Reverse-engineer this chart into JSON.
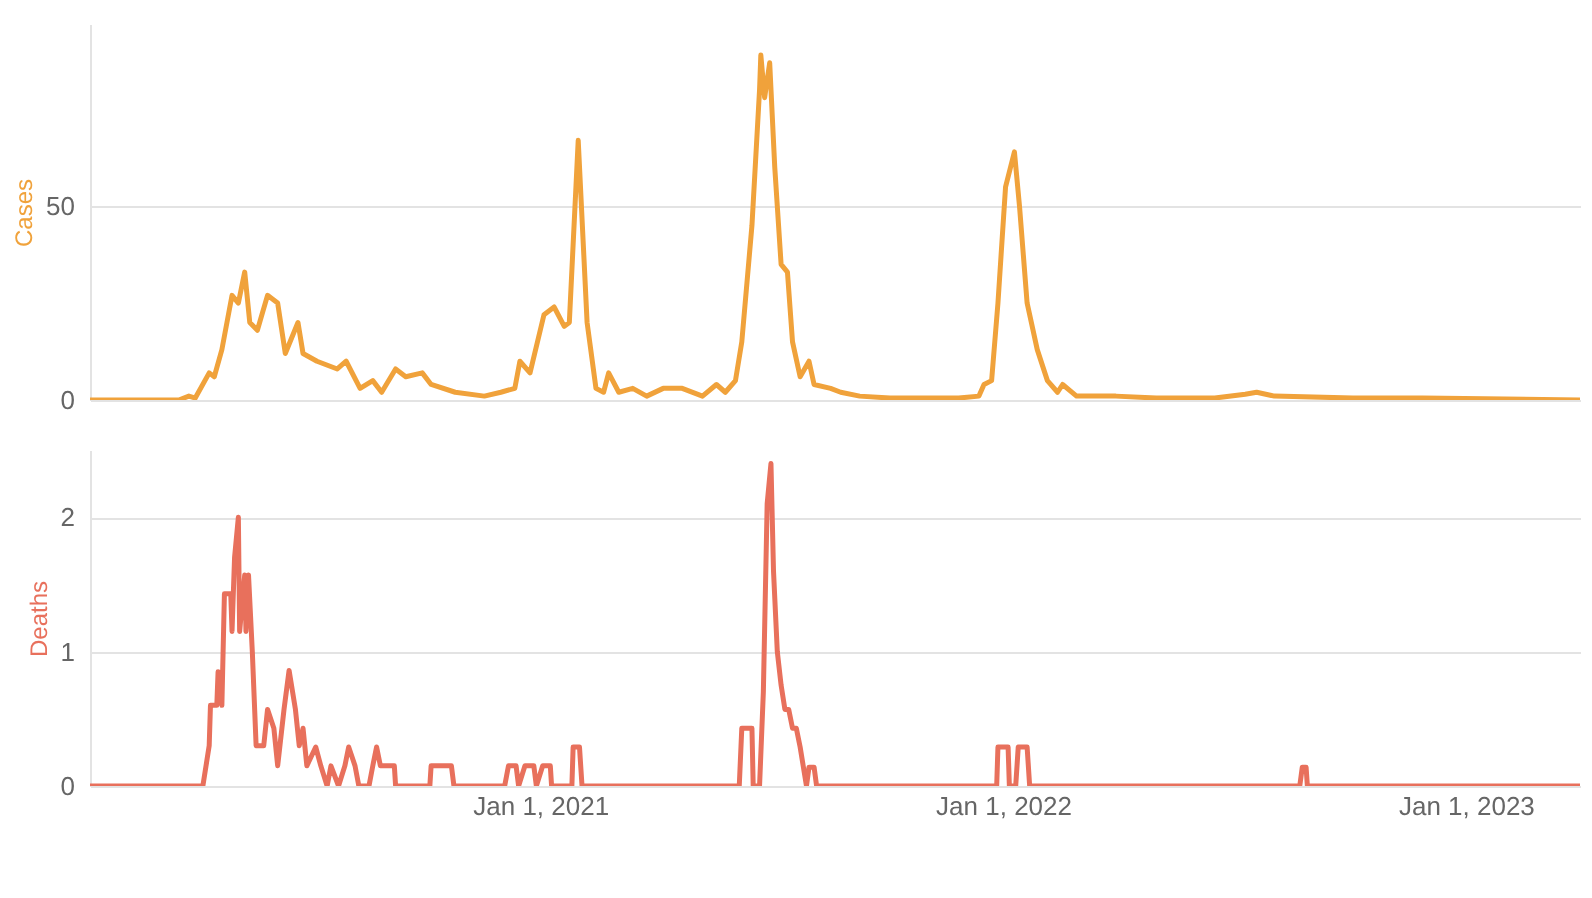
{
  "chart_data": [
    {
      "type": "line",
      "ylabel": "Cases",
      "xlim": [
        "2020-01-12",
        "2023-04-01"
      ],
      "ylim": [
        0,
        97
      ],
      "yticks": [
        0,
        50
      ],
      "grid": "y",
      "tick_labels": "y",
      "series": [
        {
          "color": "#f0a23b",
          "x": [
            "2020-01-12",
            "2020-03-22",
            "2020-03-30",
            "2020-04-04",
            "2020-04-15",
            "2020-04-19",
            "2020-04-25",
            "2020-05-03",
            "2020-05-08",
            "2020-05-13",
            "2020-05-17",
            "2020-05-23",
            "2020-05-31",
            "2020-06-08",
            "2020-06-14",
            "2020-06-24",
            "2020-06-28",
            "2020-07-09",
            "2020-07-25",
            "2020-08-01",
            "2020-08-12",
            "2020-08-22",
            "2020-08-29",
            "2020-09-09",
            "2020-09-17",
            "2020-09-30",
            "2020-10-07",
            "2020-10-26",
            "2020-11-18",
            "2020-12-01",
            "2020-12-12",
            "2020-12-16",
            "2020-12-24",
            "2021-01-04",
            "2021-01-12",
            "2021-01-20",
            "2021-01-24",
            "2021-01-31",
            "2021-02-07",
            "2021-02-14",
            "2021-02-20",
            "2021-02-24",
            "2021-03-04",
            "2021-03-15",
            "2021-03-26",
            "2021-04-08",
            "2021-04-23",
            "2021-05-09",
            "2021-05-20",
            "2021-05-27",
            "2021-06-04",
            "2021-06-09",
            "2021-06-17",
            "2021-06-23",
            "2021-06-24",
            "2021-06-27",
            "2021-07-01",
            "2021-07-05",
            "2021-07-10",
            "2021-07-15",
            "2021-07-19",
            "2021-07-25",
            "2021-08-01",
            "2021-08-05",
            "2021-08-18",
            "2021-08-26",
            "2021-09-10",
            "2021-10-04",
            "2021-11-27",
            "2021-12-13",
            "2021-12-17",
            "2021-12-23",
            "2021-12-28",
            "2022-01-03",
            "2022-01-10",
            "2022-01-14",
            "2022-01-20",
            "2022-01-28",
            "2022-02-05",
            "2022-02-13",
            "2022-02-17",
            "2022-02-28",
            "2022-03-31",
            "2022-05-02",
            "2022-06-17",
            "2022-07-11",
            "2022-07-20",
            "2022-08-03",
            "2022-10-04",
            "2022-11-28",
            "2023-04-01"
          ],
          "values": [
            0,
            0,
            1,
            0.5,
            7,
            6,
            13,
            27,
            25,
            33,
            20,
            18,
            27,
            25,
            12,
            20,
            12,
            10,
            8,
            10,
            3,
            5,
            2,
            8,
            6,
            7,
            4,
            2,
            1,
            2,
            3,
            10,
            7,
            22,
            24,
            19,
            20,
            67,
            20,
            3,
            2,
            7,
            2,
            3,
            1,
            3,
            3,
            1,
            4,
            2,
            5,
            15,
            45,
            80,
            89,
            78,
            87,
            60,
            35,
            33,
            15,
            6,
            10,
            4,
            3,
            2,
            1,
            0.5,
            0.5,
            1,
            4,
            5,
            25,
            55,
            64,
            50,
            25,
            13,
            5,
            2,
            4,
            1,
            1,
            0.5,
            0.5,
            1.5,
            2,
            1,
            0.5,
            0.5,
            0
          ]
        }
      ]
    },
    {
      "type": "line",
      "ylabel": "Deaths",
      "xlim": [
        "2020-01-12",
        "2023-04-01"
      ],
      "xticks": [
        {
          "value": "2021-01-01",
          "label": "Jan 1, 2021"
        },
        {
          "value": "2022-01-01",
          "label": "Jan 1, 2022"
        },
        {
          "value": "2023-01-01",
          "label": "Jan 1, 2023"
        }
      ],
      "ylim": [
        0,
        2.5
      ],
      "yticks": [
        0,
        1,
        2
      ],
      "grid": "y",
      "series": [
        {
          "color": "#e8705c",
          "x": [
            "2020-01-12",
            "2020-04-10",
            "2020-04-15",
            "2020-04-16",
            "2020-04-21",
            "2020-04-22",
            "2020-04-25",
            "2020-04-27",
            "2020-05-02",
            "2020-05-03",
            "2020-05-05",
            "2020-05-08",
            "2020-05-09",
            "2020-05-13",
            "2020-05-14",
            "2020-05-16",
            "2020-05-19",
            "2020-05-22",
            "2020-05-28",
            "2020-05-31",
            "2020-06-05",
            "2020-06-08",
            "2020-06-13",
            "2020-06-17",
            "2020-06-22",
            "2020-06-25",
            "2020-06-28",
            "2020-07-01",
            "2020-07-08",
            "2020-07-12",
            "2020-07-17",
            "2020-07-20",
            "2020-07-26",
            "2020-07-31",
            "2020-08-03",
            "2020-08-08",
            "2020-08-11",
            "2020-08-19",
            "2020-08-22",
            "2020-08-25",
            "2020-08-28",
            "2020-09-08",
            "2020-09-09",
            "2020-10-06",
            "2020-10-07",
            "2020-10-23",
            "2020-10-25",
            "2020-12-04",
            "2020-12-07",
            "2020-12-13",
            "2020-12-15",
            "2020-12-20",
            "2020-12-27",
            "2020-12-29",
            "2021-01-03",
            "2021-01-09",
            "2021-01-10",
            "2021-01-26",
            "2021-01-27",
            "2021-02-01",
            "2021-02-03",
            "2021-06-07",
            "2021-06-09",
            "2021-06-17",
            "2021-06-18",
            "2021-06-23",
            "2021-06-26",
            "2021-06-29",
            "2021-07-02",
            "2021-07-04",
            "2021-07-07",
            "2021-07-10",
            "2021-07-13",
            "2021-07-16",
            "2021-07-19",
            "2021-07-22",
            "2021-07-25",
            "2021-07-30",
            "2021-08-01",
            "2021-08-05",
            "2021-08-07",
            "2021-12-27",
            "2021-12-28",
            "2022-01-05",
            "2022-01-06",
            "2022-01-11",
            "2022-01-13",
            "2022-01-20",
            "2022-01-22",
            "2022-08-23",
            "2022-08-25",
            "2022-08-28",
            "2022-08-29",
            "2023-04-01"
          ],
          "values": [
            0,
            0,
            0.3,
            0.6,
            0.6,
            0.85,
            0.6,
            1.43,
            1.43,
            1.15,
            1.7,
            2,
            1.15,
            1.57,
            1.15,
            1.57,
            1,
            0.3,
            0.3,
            0.57,
            0.43,
            0.15,
            0.57,
            0.86,
            0.57,
            0.3,
            0.43,
            0.15,
            0.29,
            0.15,
            0,
            0.15,
            0,
            0.15,
            0.29,
            0.15,
            0,
            0,
            0.15,
            0.29,
            0.15,
            0.15,
            0,
            0,
            0.15,
            0.15,
            0,
            0,
            0.15,
            0.15,
            0,
            0.15,
            0.15,
            0,
            0.15,
            0.15,
            0,
            0,
            0.29,
            0.29,
            0,
            0,
            0.43,
            0.43,
            0,
            0,
            0.7,
            2.1,
            2.4,
            1.6,
            1,
            0.75,
            0.57,
            0.57,
            0.43,
            0.43,
            0.29,
            0,
            0.14,
            0.14,
            0,
            0,
            0.29,
            0.29,
            0,
            0,
            0.29,
            0.29,
            0,
            0,
            0.14,
            0.14,
            0,
            0
          ]
        }
      ]
    }
  ]
}
